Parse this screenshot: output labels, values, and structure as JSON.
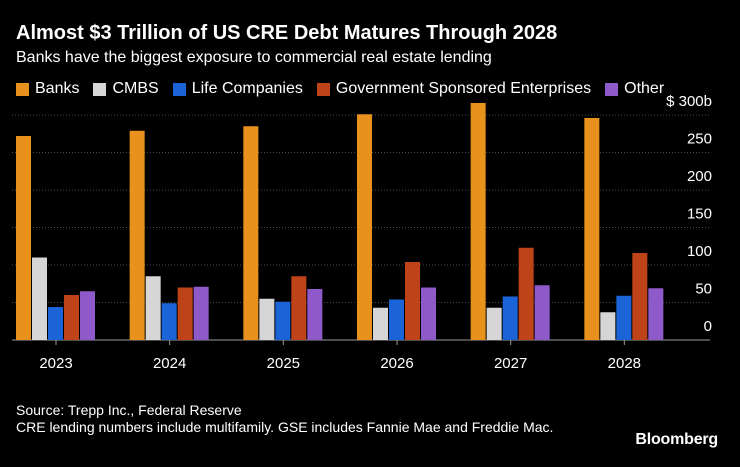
{
  "header": {
    "title": "Almost $3 Trillion of US CRE Debt Matures Through 2028",
    "subtitle": "Banks have the biggest exposure to commercial real estate lending"
  },
  "legend": [
    {
      "label": "Banks",
      "color": "#e8911c"
    },
    {
      "label": "CMBS",
      "color": "#d6d6d6"
    },
    {
      "label": "Life Companies",
      "color": "#1b64d8"
    },
    {
      "label": "Government Sponsored Enterprises",
      "color": "#bf4318"
    },
    {
      "label": "Other",
      "color": "#8e59c9"
    }
  ],
  "chart_data": {
    "type": "bar",
    "title": "Almost $3 Trillion of US CRE Debt Matures Through 2028",
    "subtitle": "Banks have the biggest exposure to commercial real estate lending",
    "categories": [
      "2023",
      "2024",
      "2025",
      "2026",
      "2027",
      "2028"
    ],
    "series": [
      {
        "name": "Banks",
        "color": "#e8911c",
        "values": [
          272,
          279,
          285,
          301,
          316,
          296
        ]
      },
      {
        "name": "CMBS",
        "color": "#d6d6d6",
        "values": [
          110,
          85,
          55,
          43,
          43,
          37
        ]
      },
      {
        "name": "Life Companies",
        "color": "#1b64d8",
        "values": [
          44,
          49,
          51,
          54,
          58,
          59
        ]
      },
      {
        "name": "Government Sponsored Enterprises",
        "color": "#bf4318",
        "values": [
          60,
          70,
          85,
          104,
          123,
          116
        ]
      },
      {
        "name": "Other",
        "color": "#8e59c9",
        "values": [
          65,
          71,
          68,
          70,
          73,
          69
        ]
      }
    ],
    "ylim": [
      0,
      300
    ],
    "yticks": [
      0,
      50,
      100,
      150,
      200,
      250,
      300
    ],
    "ytick_labels": [
      "0",
      "50",
      "100",
      "150",
      "200",
      "250",
      "$ 300b"
    ],
    "xlabel": "",
    "ylabel": "",
    "grid": true,
    "legend_position": "top"
  },
  "footer": {
    "source": "Source: Trepp Inc., Federal Reserve",
    "note": "CRE lending numbers include multifamily. GSE includes Fannie Mae and Freddie Mac."
  },
  "brand": "Bloomberg"
}
